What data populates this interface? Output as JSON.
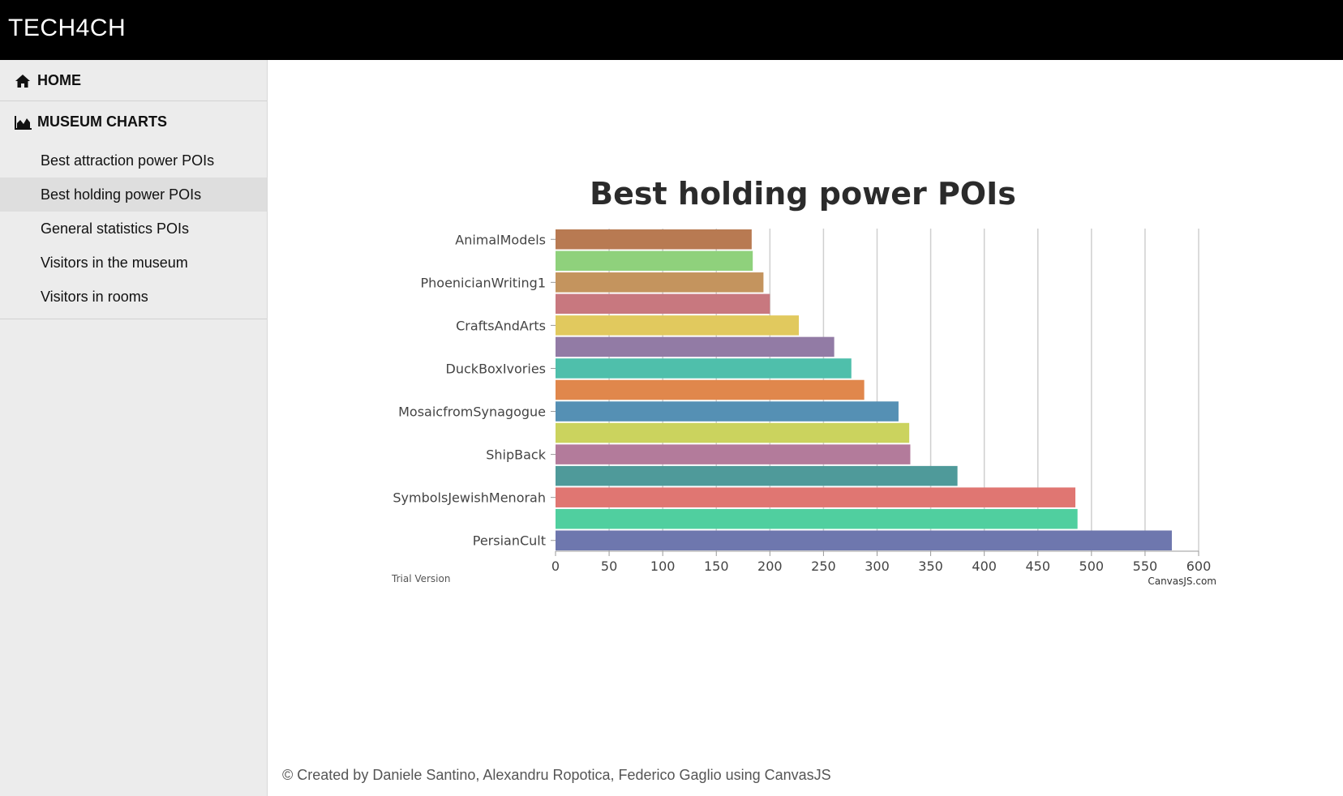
{
  "app": {
    "brand": "TECH4CH"
  },
  "sidebar": {
    "home": {
      "label": "HOME",
      "icon": "home-icon"
    },
    "museum_charts": {
      "label": "MUSEUM CHARTS",
      "icon": "area-chart-icon",
      "items": [
        {
          "label": "Best attraction power POIs",
          "active": false
        },
        {
          "label": "Best holding power POIs",
          "active": true
        },
        {
          "label": "General statistics POIs",
          "active": false
        },
        {
          "label": "Visitors in the museum",
          "active": false
        },
        {
          "label": "Visitors in rooms",
          "active": false
        }
      ]
    }
  },
  "chart_data": {
    "type": "bar",
    "orientation": "horizontal",
    "title": "Best holding power POIs",
    "xlim": [
      0,
      600
    ],
    "x_ticks": [
      "0",
      "50",
      "100",
      "150",
      "200",
      "250",
      "300",
      "350",
      "400",
      "450",
      "500",
      "550",
      "600"
    ],
    "grid": true,
    "legend": "none",
    "categories": [
      "AnimalModels",
      "",
      "PhoenicianWriting1",
      "",
      "CraftsAndArts",
      "",
      "DuckBoxIvories",
      "",
      "MosaicfromSynagogue",
      "",
      "ShipBack",
      "",
      "SymbolsJewishMenorah",
      "",
      "PersianCult"
    ],
    "values": [
      183,
      184,
      194,
      200,
      227,
      260,
      276,
      288,
      320,
      330,
      331,
      375,
      485,
      487,
      575
    ],
    "colors": [
      "#b87a52",
      "#8fd17c",
      "#c4945e",
      "#c8787f",
      "#e1c95e",
      "#927ba5",
      "#4fbfab",
      "#e0874c",
      "#5590b4",
      "#cbd35e",
      "#b37b9b",
      "#4f9a9a",
      "#e07672",
      "#50cf9f",
      "#6e77ae"
    ],
    "trial_label": "Trial Version",
    "credit_label": "CanvasJS.com"
  },
  "footer": {
    "text": "© Created by Daniele Santino, Alexandru Ropotica, Federico Gaglio using CanvasJS"
  }
}
